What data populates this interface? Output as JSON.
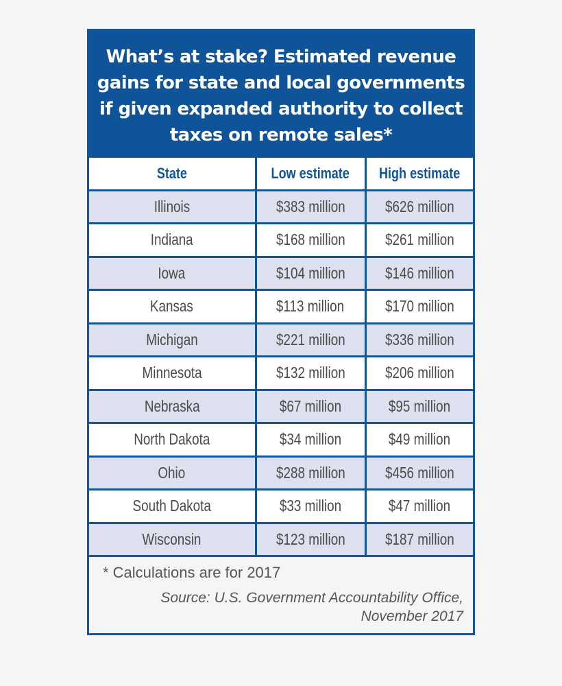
{
  "title": "What’s at stake? Estimated revenue gains for state and local governments if given expanded authority to collect taxes on remote sales*",
  "headers": [
    "State",
    "Low estimate",
    "High estimate"
  ],
  "rows": [
    [
      "Illinois",
      "$383 million",
      "$626 million"
    ],
    [
      "Indiana",
      "$168 million",
      "$261 million"
    ],
    [
      "Iowa",
      "$104 million",
      "$146 million"
    ],
    [
      "Kansas",
      "$113 million",
      "$170 million"
    ],
    [
      "Michigan",
      "$221 million",
      "$336 million"
    ],
    [
      "Minnesota",
      "$132 million",
      "$206 million"
    ],
    [
      "Nebraska",
      "$67 million",
      "$95 million"
    ],
    [
      "North Dakota",
      "$34 million",
      "$49 million"
    ],
    [
      "Ohio",
      "$288 million",
      "$456 million"
    ],
    [
      "South Dakota",
      "$33 million",
      "$47 million"
    ],
    [
      "Wisconsin",
      "$123 million",
      "$187 million"
    ]
  ],
  "footnote": "* Calculations are for 2017",
  "source_line1": "Source: U.S. Government Accountability Office,",
  "source_line2": "November 2017",
  "colors": {
    "brand_blue": "#0f5499",
    "alt_row": "#dde1ef"
  }
}
